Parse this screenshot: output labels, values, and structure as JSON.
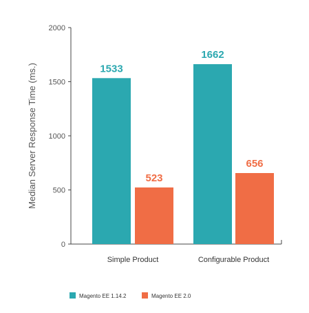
{
  "chart_data": {
    "type": "bar",
    "title": "",
    "xlabel": "",
    "ylabel": "Median Server Response Time (ms.)",
    "categories": [
      "Simple Product",
      "Configurable Product"
    ],
    "series": [
      {
        "name": "Magento EE 1.14.2",
        "values": [
          1533,
          1662
        ],
        "color": "#2BA8B0"
      },
      {
        "name": "Magento EE 2.0",
        "values": [
          523,
          656
        ],
        "color": "#F06D45"
      }
    ],
    "ylim": [
      0,
      2000
    ],
    "yticks": [
      "0",
      "500",
      "1000",
      "1500",
      "2000"
    ],
    "data_labels": [
      [
        "1533",
        "1662"
      ],
      [
        "523",
        "656"
      ]
    ],
    "grid": false,
    "legend_position": "bottom-left"
  }
}
